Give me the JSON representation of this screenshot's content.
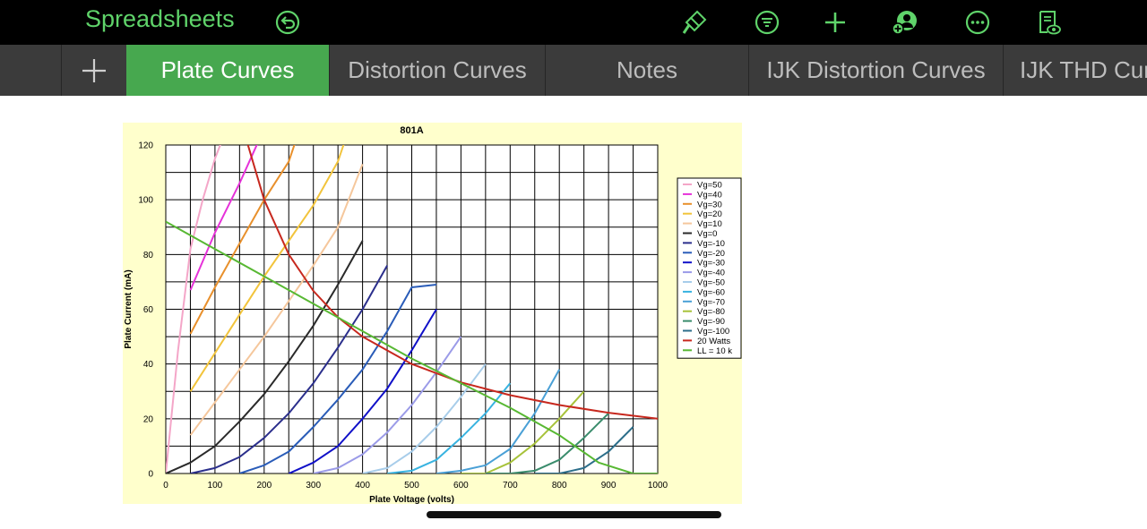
{
  "app": {
    "title": "Spreadsheets"
  },
  "toolbar": {
    "icons": [
      "undo-icon",
      "paintbrush-icon",
      "filter-icon",
      "plus-icon",
      "collaborate-icon",
      "more-icon",
      "reader-view-icon"
    ],
    "accent_color": "#5fd36a"
  },
  "tabs": [
    {
      "label": "Plate Curves",
      "active": true
    },
    {
      "label": "Distortion Curves",
      "active": false
    },
    {
      "label": "Notes",
      "active": false
    },
    {
      "label": "IJK Distortion Curves",
      "active": false
    },
    {
      "label": "IJK THD Curves",
      "active": false
    }
  ],
  "chart_data": {
    "type": "line",
    "title": "801A",
    "xlabel": "Plate Voltage (volts)",
    "ylabel": "Plate Current (mA)",
    "xlim": [
      0,
      1000
    ],
    "ylim": [
      0,
      120
    ],
    "xticks": [
      0,
      100,
      200,
      300,
      400,
      500,
      600,
      700,
      800,
      900,
      1000
    ],
    "yticks": [
      0,
      20,
      40,
      60,
      80,
      100,
      120
    ],
    "grid": true,
    "legend": "right",
    "series": [
      {
        "name": "Vg=50",
        "color": "#f4a6c8",
        "x": [
          0,
          25,
          50,
          75,
          100,
          115
        ],
        "y": [
          0,
          45,
          82,
          100,
          115,
          122
        ]
      },
      {
        "name": "Vg=40",
        "color": "#e632d9",
        "x": [
          50,
          100,
          150,
          190
        ],
        "y": [
          67,
          88,
          106,
          122
        ]
      },
      {
        "name": "Vg=30",
        "color": "#e8902c",
        "x": [
          50,
          100,
          150,
          200,
          250,
          265
        ],
        "y": [
          51,
          68,
          84,
          100,
          114,
          122
        ]
      },
      {
        "name": "Vg=20",
        "color": "#f2c43c",
        "x": [
          50,
          100,
          150,
          200,
          250,
          300,
          350,
          365
        ],
        "y": [
          30,
          44,
          58,
          72,
          85,
          98,
          114,
          122
        ]
      },
      {
        "name": "Vg=10",
        "color": "#f5c79c",
        "x": [
          50,
          100,
          150,
          200,
          250,
          300,
          350,
          400
        ],
        "y": [
          14,
          26,
          38,
          50,
          63,
          76,
          90,
          113
        ]
      },
      {
        "name": "Vg=0",
        "color": "#2a2a2a",
        "x": [
          0,
          50,
          100,
          150,
          200,
          250,
          300,
          350,
          400
        ],
        "y": [
          0,
          4,
          10,
          19,
          29,
          41,
          54,
          69,
          85
        ]
      },
      {
        "name": "Vg=-10",
        "color": "#2b2f8c",
        "x": [
          50,
          100,
          150,
          200,
          250,
          300,
          350,
          400,
          450
        ],
        "y": [
          0,
          2,
          6,
          13,
          22,
          33,
          46,
          60,
          76
        ]
      },
      {
        "name": "Vg=-20",
        "color": "#2a5cb8",
        "x": [
          150,
          200,
          250,
          300,
          350,
          400,
          450,
          500,
          550
        ],
        "y": [
          0,
          3,
          8,
          17,
          27,
          38,
          52,
          68,
          69
        ]
      },
      {
        "name": "Vg=-30",
        "color": "#1010c8",
        "x": [
          250,
          300,
          350,
          400,
          450,
          500,
          550
        ],
        "y": [
          0,
          4,
          10,
          20,
          31,
          45,
          60
        ]
      },
      {
        "name": "Vg=-40",
        "color": "#9b9be8",
        "x": [
          300,
          350,
          400,
          450,
          500,
          550,
          600
        ],
        "y": [
          0,
          2,
          7,
          15,
          25,
          37,
          50
        ]
      },
      {
        "name": "Vg=-50",
        "color": "#a8cdea",
        "x": [
          400,
          450,
          500,
          550,
          600,
          650
        ],
        "y": [
          0,
          2,
          8,
          17,
          28,
          40
        ]
      },
      {
        "name": "Vg=-60",
        "color": "#38b3e0",
        "x": [
          450,
          500,
          550,
          600,
          650,
          700
        ],
        "y": [
          0,
          1,
          5,
          13,
          22,
          33
        ]
      },
      {
        "name": "Vg=-70",
        "color": "#4aa0d6",
        "x": [
          550,
          600,
          650,
          700,
          750,
          800
        ],
        "y": [
          0,
          1,
          3,
          9,
          22,
          38
        ]
      },
      {
        "name": "Vg=-80",
        "color": "#a7c23a",
        "x": [
          600,
          650,
          700,
          750,
          800,
          850
        ],
        "y": [
          0,
          0,
          4,
          11,
          20,
          30
        ]
      },
      {
        "name": "Vg=-90",
        "color": "#3a8c6c",
        "x": [
          650,
          700,
          750,
          800,
          850,
          900
        ],
        "y": [
          0,
          0,
          1,
          5,
          13,
          22
        ]
      },
      {
        "name": "Vg=-100",
        "color": "#2c6e8a",
        "x": [
          750,
          800,
          850,
          900,
          950
        ],
        "y": [
          0,
          0,
          2,
          8,
          17
        ]
      },
      {
        "name": "20 Watts",
        "color": "#c7281e",
        "x": [
          167,
          200,
          250,
          300,
          350,
          400,
          500,
          600,
          700,
          800,
          900,
          1000
        ],
        "y": [
          120,
          100,
          80,
          66.7,
          57.1,
          50,
          40,
          33.3,
          28.6,
          25,
          22.2,
          20
        ]
      },
      {
        "name": "LL = 10 k",
        "color": "#58b833",
        "x": [
          0,
          100,
          200,
          300,
          400,
          500,
          600,
          700,
          800,
          880,
          950,
          1000
        ],
        "y": [
          92,
          82,
          72,
          62,
          52,
          42,
          33,
          24,
          14,
          4,
          0,
          0
        ]
      }
    ]
  }
}
